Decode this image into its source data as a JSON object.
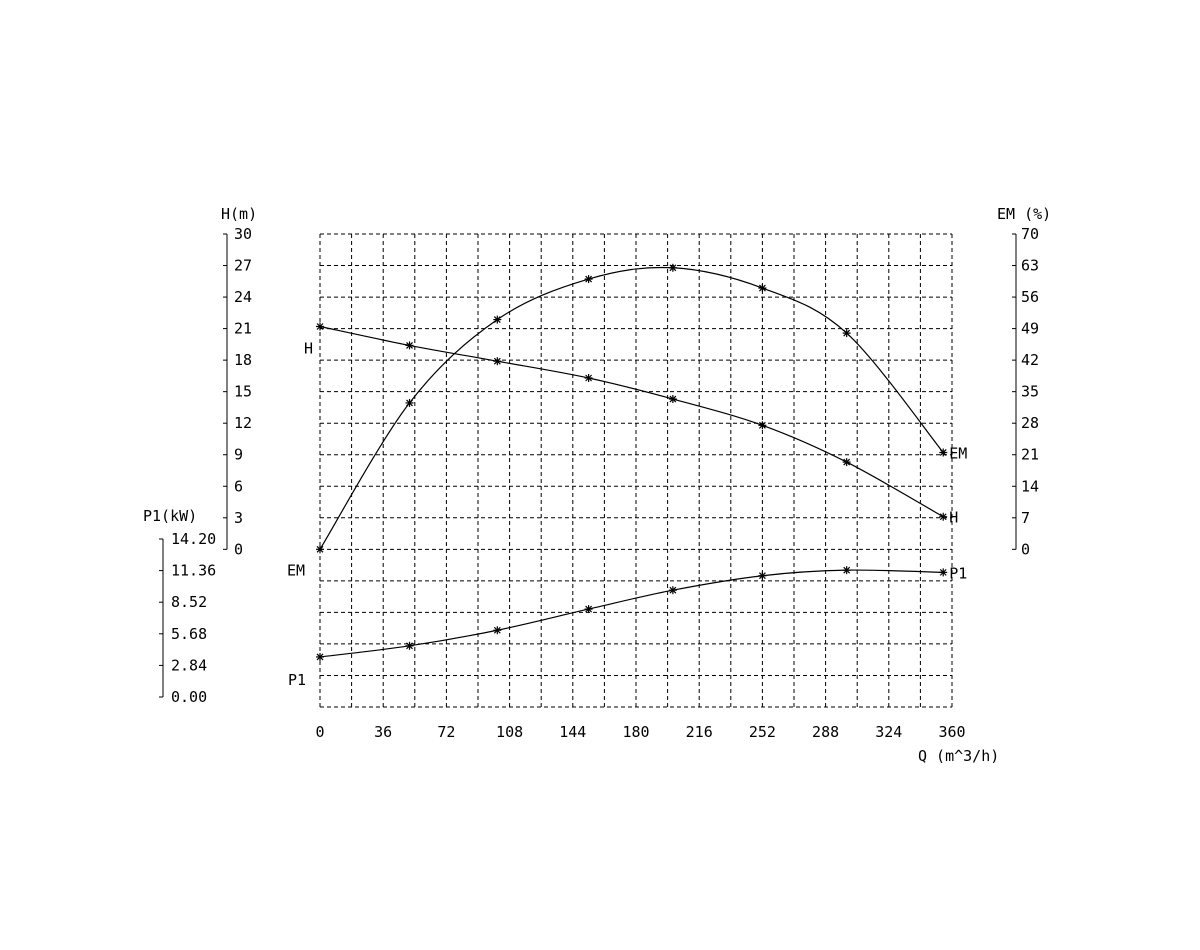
{
  "chart_data": {
    "type": "line",
    "x_axis": {
      "label": "Q (m^3/h)",
      "ticks": [
        "0",
        "36",
        "72",
        "108",
        "144",
        "180",
        "216",
        "252",
        "288",
        "324",
        "360"
      ],
      "range": [
        0,
        360
      ]
    },
    "axes": {
      "H": {
        "label": "H(m)",
        "ticks": [
          "0",
          "3",
          "6",
          "9",
          "12",
          "15",
          "18",
          "21",
          "24",
          "27",
          "30"
        ],
        "range": [
          0,
          30
        ],
        "side": "left"
      },
      "EM": {
        "label": "EM (%)",
        "ticks": [
          "0",
          "7",
          "14",
          "21",
          "28",
          "35",
          "42",
          "49",
          "56",
          "63",
          "70"
        ],
        "range": [
          0,
          70
        ],
        "side": "right"
      },
      "P1": {
        "label": "P1(kW)",
        "ticks": [
          "0.00",
          "2.84",
          "5.68",
          "8.52",
          "11.36",
          "14.20"
        ],
        "range": [
          0,
          14.2
        ],
        "side": "left-lower"
      }
    },
    "series": [
      {
        "name": "H",
        "axis": "H",
        "start_label": "H",
        "end_label": "H",
        "points": [
          [
            0,
            21.2
          ],
          [
            51,
            19.4
          ],
          [
            101,
            17.9
          ],
          [
            153,
            16.3
          ],
          [
            201,
            14.3
          ],
          [
            252,
            11.8
          ],
          [
            300,
            8.3
          ],
          [
            355,
            3.1
          ]
        ]
      },
      {
        "name": "EM",
        "axis": "EM",
        "start_label": "EM",
        "end_label": "EM",
        "points": [
          [
            0,
            0
          ],
          [
            51,
            32.5
          ],
          [
            101,
            51
          ],
          [
            153,
            60
          ],
          [
            201,
            62.5
          ],
          [
            252,
            58
          ],
          [
            300,
            48
          ],
          [
            355,
            21.5
          ]
        ]
      },
      {
        "name": "P1",
        "axis": "P1",
        "start_label": "P1",
        "end_label": "P1",
        "points": [
          [
            0,
            3.6
          ],
          [
            51,
            4.6
          ],
          [
            101,
            6.0
          ],
          [
            153,
            7.9
          ],
          [
            201,
            9.6
          ],
          [
            252,
            10.9
          ],
          [
            300,
            11.4
          ],
          [
            355,
            11.2
          ]
        ]
      }
    ],
    "grid": true
  }
}
